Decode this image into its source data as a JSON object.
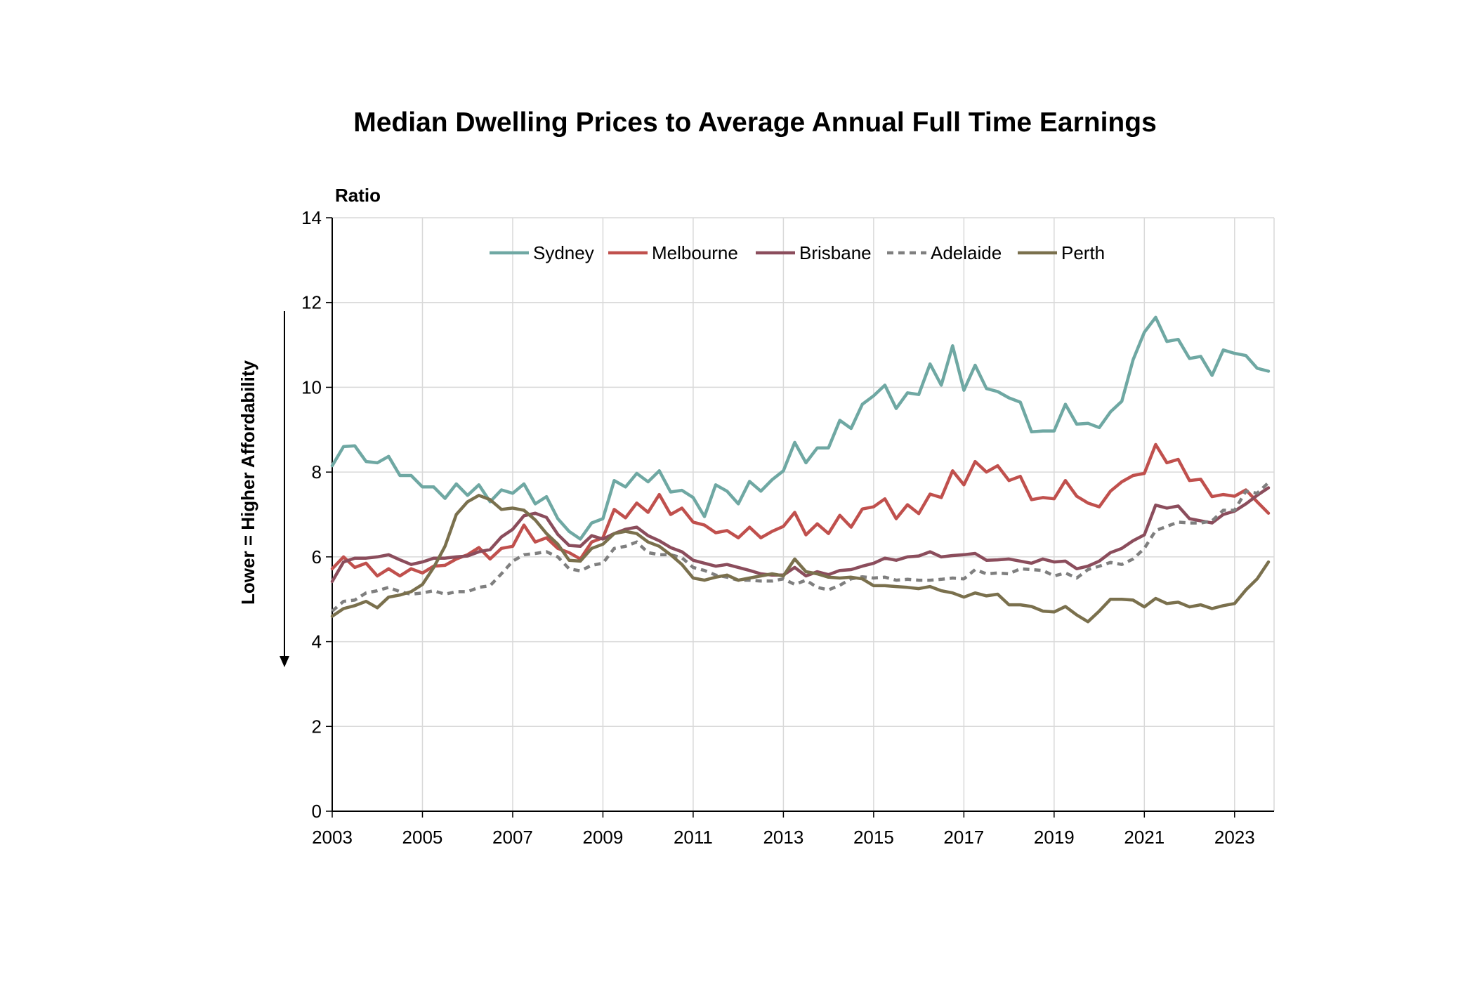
{
  "chart_data": {
    "type": "line",
    "title": "Median Dwelling Prices to Average Annual Full Time Earnings",
    "ylabel": "Ratio",
    "side_note": "Lower = Higher Affordability",
    "ylim": [
      0,
      14
    ],
    "y_ticks": [
      "0",
      "2",
      "4",
      "6",
      "8",
      "10",
      "12",
      "14"
    ],
    "x_ticks": [
      "2003",
      "2005",
      "2007",
      "2009",
      "2011",
      "2013",
      "2015",
      "2017",
      "2019",
      "2021",
      "2023"
    ],
    "x_start": 2003.0,
    "x_step": 0.25,
    "xlim": [
      2003.0,
      2023.875
    ],
    "grid": true,
    "legend_position": "top",
    "series": [
      {
        "name": "Sydney",
        "color": "#6fa8a3",
        "dashed": false,
        "values": [
          8.15,
          8.6,
          8.62,
          8.25,
          8.22,
          8.37,
          7.92,
          7.92,
          7.65,
          7.65,
          7.38,
          7.72,
          7.45,
          7.7,
          7.3,
          7.58,
          7.5,
          7.72,
          7.25,
          7.42,
          6.9,
          6.6,
          6.42,
          6.8,
          6.9,
          7.8,
          7.65,
          7.97,
          7.77,
          8.03,
          7.53,
          7.57,
          7.4,
          6.95,
          7.7,
          7.55,
          7.25,
          7.78,
          7.55,
          7.82,
          8.03,
          8.7,
          8.22,
          8.57,
          8.57,
          9.22,
          9.03,
          9.6,
          9.8,
          10.05,
          9.5,
          9.87,
          9.83,
          10.55,
          10.05,
          10.98,
          9.93,
          10.52,
          9.97,
          9.9,
          9.75,
          9.65,
          8.95,
          8.97,
          8.97,
          9.6,
          9.13,
          9.15,
          9.05,
          9.42,
          9.67,
          10.65,
          11.3,
          11.65,
          11.08,
          11.13,
          10.68,
          10.73,
          10.28,
          10.88,
          10.8,
          10.75,
          10.45,
          10.38
        ]
      },
      {
        "name": "Melbourne",
        "color": "#c0504d",
        "dashed": false,
        "values": [
          5.72,
          6.0,
          5.75,
          5.85,
          5.55,
          5.72,
          5.55,
          5.72,
          5.62,
          5.78,
          5.8,
          5.95,
          6.05,
          6.22,
          5.95,
          6.2,
          6.25,
          6.75,
          6.35,
          6.45,
          6.2,
          6.1,
          5.95,
          6.35,
          6.45,
          7.12,
          6.92,
          7.27,
          7.05,
          7.47,
          7.0,
          7.15,
          6.82,
          6.75,
          6.57,
          6.62,
          6.45,
          6.7,
          6.45,
          6.6,
          6.72,
          7.05,
          6.52,
          6.78,
          6.55,
          6.98,
          6.7,
          7.13,
          7.18,
          7.37,
          6.9,
          7.23,
          7.02,
          7.48,
          7.4,
          8.03,
          7.7,
          8.25,
          8.0,
          8.15,
          7.8,
          7.9,
          7.35,
          7.4,
          7.37,
          7.8,
          7.43,
          7.27,
          7.18,
          7.55,
          7.77,
          7.92,
          7.97,
          8.65,
          8.22,
          8.3,
          7.8,
          7.83,
          7.42,
          7.47,
          7.43,
          7.58,
          7.3,
          7.03
        ]
      },
      {
        "name": "Brisbane",
        "color": "#8b4d5c",
        "dashed": false,
        "values": [
          5.42,
          5.88,
          5.97,
          5.97,
          6.0,
          6.05,
          5.93,
          5.82,
          5.88,
          5.97,
          5.97,
          6.0,
          6.02,
          6.12,
          6.17,
          6.47,
          6.65,
          6.97,
          7.03,
          6.93,
          6.53,
          6.27,
          6.25,
          6.5,
          6.42,
          6.55,
          6.65,
          6.7,
          6.5,
          6.38,
          6.22,
          6.12,
          5.92,
          5.85,
          5.78,
          5.82,
          5.75,
          5.68,
          5.6,
          5.57,
          5.57,
          5.75,
          5.55,
          5.65,
          5.58,
          5.68,
          5.7,
          5.78,
          5.85,
          5.97,
          5.92,
          6.0,
          6.02,
          6.12,
          6.0,
          6.03,
          6.05,
          6.08,
          5.92,
          5.93,
          5.95,
          5.9,
          5.85,
          5.95,
          5.88,
          5.9,
          5.72,
          5.78,
          5.9,
          6.1,
          6.2,
          6.38,
          6.52,
          7.22,
          7.15,
          7.2,
          6.9,
          6.85,
          6.8,
          7.0,
          7.08,
          7.25,
          7.45,
          7.63
        ]
      },
      {
        "name": "Adelaide",
        "color": "#7f7f7f",
        "dashed": true,
        "values": [
          4.72,
          4.95,
          4.98,
          5.15,
          5.2,
          5.28,
          5.18,
          5.12,
          5.15,
          5.2,
          5.12,
          5.18,
          5.18,
          5.28,
          5.32,
          5.6,
          5.9,
          6.05,
          6.08,
          6.12,
          6.0,
          5.72,
          5.67,
          5.8,
          5.85,
          6.2,
          6.25,
          6.35,
          6.1,
          6.05,
          6.05,
          5.98,
          5.75,
          5.68,
          5.57,
          5.52,
          5.45,
          5.45,
          5.43,
          5.43,
          5.48,
          5.35,
          5.45,
          5.28,
          5.22,
          5.33,
          5.48,
          5.53,
          5.5,
          5.52,
          5.45,
          5.47,
          5.45,
          5.45,
          5.47,
          5.5,
          5.48,
          5.7,
          5.6,
          5.62,
          5.6,
          5.72,
          5.7,
          5.68,
          5.55,
          5.62,
          5.5,
          5.7,
          5.78,
          5.87,
          5.82,
          5.95,
          6.2,
          6.62,
          6.72,
          6.82,
          6.8,
          6.8,
          6.85,
          7.1,
          7.1,
          7.55,
          7.5,
          7.75
        ]
      },
      {
        "name": "Perth",
        "color": "#7a704d",
        "dashed": false,
        "values": [
          4.6,
          4.78,
          4.85,
          4.95,
          4.8,
          5.05,
          5.1,
          5.18,
          5.35,
          5.75,
          6.25,
          7.0,
          7.3,
          7.45,
          7.35,
          7.12,
          7.15,
          7.1,
          6.87,
          6.55,
          6.3,
          5.92,
          5.9,
          6.2,
          6.3,
          6.55,
          6.6,
          6.55,
          6.35,
          6.25,
          6.05,
          5.82,
          5.5,
          5.45,
          5.52,
          5.57,
          5.45,
          5.5,
          5.55,
          5.6,
          5.55,
          5.95,
          5.65,
          5.6,
          5.52,
          5.5,
          5.52,
          5.48,
          5.32,
          5.32,
          5.3,
          5.28,
          5.25,
          5.3,
          5.2,
          5.15,
          5.05,
          5.15,
          5.08,
          5.12,
          4.87,
          4.87,
          4.83,
          4.72,
          4.7,
          4.83,
          4.63,
          4.47,
          4.72,
          5.0,
          5.0,
          4.98,
          4.82,
          5.02,
          4.9,
          4.93,
          4.82,
          4.87,
          4.78,
          4.85,
          4.9,
          5.22,
          5.48,
          5.88
        ]
      }
    ]
  }
}
